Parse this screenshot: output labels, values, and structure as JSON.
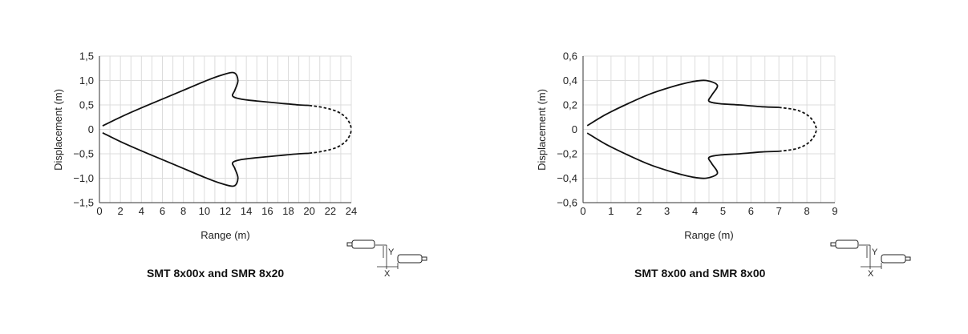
{
  "chart_data": [
    {
      "type": "line",
      "title": "SMT 8x00x and SMR 8x20",
      "xlabel": "Range (m)",
      "ylabel": "Displacement (m)",
      "xlim": [
        0,
        24
      ],
      "ylim": [
        -1.5,
        1.5
      ],
      "xticks": [
        0,
        2,
        4,
        6,
        8,
        10,
        12,
        14,
        16,
        18,
        20,
        22,
        24
      ],
      "yticks": [
        -1.5,
        -1.0,
        -0.5,
        0,
        0.5,
        1.0,
        1.5
      ],
      "xtick_labels": [
        "0",
        "2",
        "4",
        "6",
        "8",
        "10",
        "12",
        "14",
        "16",
        "18",
        "20",
        "22",
        "24"
      ],
      "ytick_labels": [
        "−1,5",
        "−1,0",
        "−0,5",
        "0",
        "0,5",
        "1,0",
        "1,5"
      ],
      "grid": true,
      "series": [
        {
          "style": "solid",
          "x": [
            0.3,
            2,
            4,
            6,
            8,
            10,
            11.5,
            12.8,
            13.2,
            12.9,
            12.7,
            13.5,
            15,
            17,
            19,
            20
          ],
          "y": [
            0.07,
            0.25,
            0.44,
            0.62,
            0.8,
            0.98,
            1.1,
            1.16,
            1.0,
            0.8,
            0.68,
            0.62,
            0.58,
            0.54,
            0.5,
            0.49
          ]
        },
        {
          "style": "dashed",
          "x": [
            20,
            21.5,
            22.7,
            23.5,
            23.9,
            24.0
          ],
          "y": [
            0.49,
            0.44,
            0.36,
            0.24,
            0.1,
            0.0
          ]
        },
        {
          "style": "solid",
          "x": [
            0.3,
            2,
            4,
            6,
            8,
            10,
            11.5,
            12.8,
            13.2,
            12.9,
            12.7,
            13.5,
            15,
            17,
            19,
            20
          ],
          "y": [
            -0.07,
            -0.25,
            -0.44,
            -0.62,
            -0.8,
            -0.98,
            -1.1,
            -1.16,
            -1.0,
            -0.8,
            -0.68,
            -0.62,
            -0.58,
            -0.54,
            -0.5,
            -0.49
          ]
        },
        {
          "style": "dashed",
          "x": [
            20,
            21.5,
            22.7,
            23.5,
            23.9,
            24.0
          ],
          "y": [
            -0.49,
            -0.44,
            -0.36,
            -0.24,
            -0.1,
            0.0
          ]
        }
      ]
    },
    {
      "type": "line",
      "title": "SMT 8x00 and SMR 8x00",
      "xlabel": "Range (m)",
      "ylabel": "Displacement (m)",
      "xlim": [
        0,
        9
      ],
      "ylim": [
        -0.6,
        0.6
      ],
      "xticks": [
        0,
        1,
        2,
        3,
        4,
        5,
        6,
        7,
        8,
        9
      ],
      "yticks": [
        -0.6,
        -0.4,
        -0.2,
        0,
        0.2,
        0.4,
        0.6
      ],
      "xtick_labels": [
        "0",
        "1",
        "2",
        "3",
        "4",
        "5",
        "6",
        "7",
        "8",
        "9"
      ],
      "ytick_labels": [
        "−0,6",
        "−0,4",
        "−0,2",
        "0",
        "0,2",
        "0,4",
        "0,6"
      ],
      "grid": true,
      "series": [
        {
          "style": "solid",
          "x": [
            0.15,
            0.8,
            1.6,
            2.4,
            3.2,
            3.9,
            4.4,
            4.8,
            4.6,
            4.5,
            4.9,
            5.6,
            6.4,
            7.0
          ],
          "y": [
            0.03,
            0.12,
            0.21,
            0.29,
            0.35,
            0.39,
            0.4,
            0.36,
            0.28,
            0.23,
            0.21,
            0.2,
            0.185,
            0.18
          ]
        },
        {
          "style": "dashed",
          "x": [
            7.0,
            7.6,
            8.0,
            8.25,
            8.35
          ],
          "y": [
            0.18,
            0.16,
            0.12,
            0.06,
            0.0
          ]
        },
        {
          "style": "solid",
          "x": [
            0.15,
            0.8,
            1.6,
            2.4,
            3.2,
            3.9,
            4.4,
            4.8,
            4.6,
            4.5,
            4.9,
            5.6,
            6.4,
            7.0
          ],
          "y": [
            -0.03,
            -0.12,
            -0.21,
            -0.29,
            -0.35,
            -0.39,
            -0.4,
            -0.36,
            -0.28,
            -0.23,
            -0.21,
            -0.2,
            -0.185,
            -0.18
          ]
        },
        {
          "style": "dashed",
          "x": [
            7.0,
            7.6,
            8.0,
            8.25,
            8.35
          ],
          "y": [
            -0.18,
            -0.16,
            -0.12,
            -0.06,
            0.0
          ]
        }
      ]
    }
  ],
  "diagram": {
    "x_label": "X",
    "y_label": "Y"
  }
}
